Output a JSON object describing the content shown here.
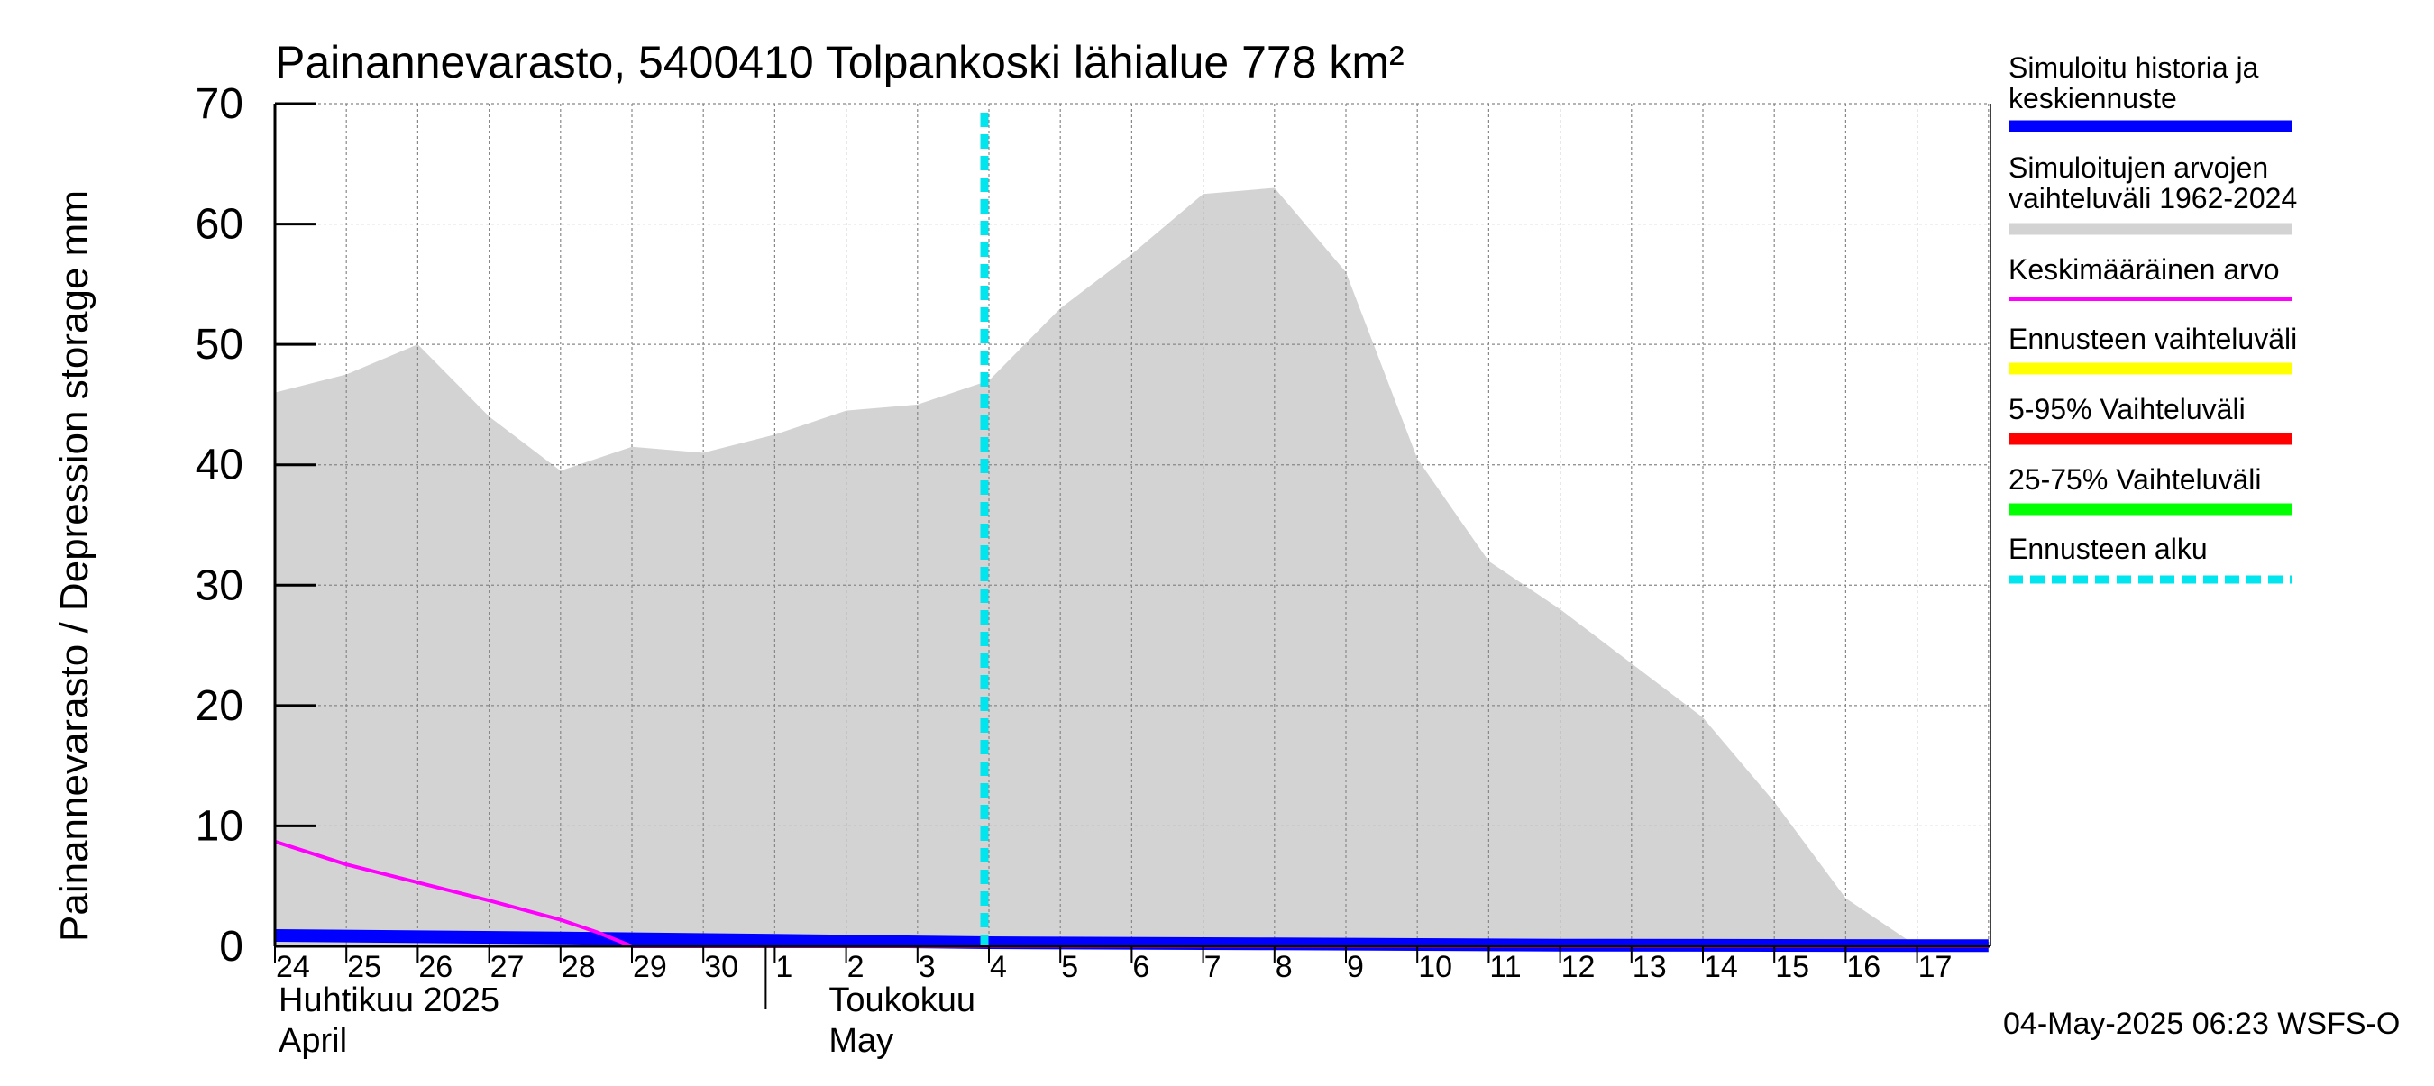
{
  "chart_data": {
    "type": "area",
    "title": "Painannevarasto, 5400410 Tolpankoski lähialue 778 km²",
    "ylabel": "Painannevarasto / Depression storage    mm",
    "ylim": [
      0,
      70
    ],
    "yticks": [
      0,
      10,
      20,
      30,
      40,
      50,
      60,
      70
    ],
    "x_day_labels": [
      "24",
      "25",
      "26",
      "27",
      "28",
      "29",
      "30",
      "1",
      "2",
      "3",
      "4",
      "5",
      "6",
      "7",
      "8",
      "9",
      "10",
      "11",
      "12",
      "13",
      "14",
      "15",
      "16",
      "17"
    ],
    "month_labels": [
      {
        "fi": "Huhtikuu  2025",
        "en": "April"
      },
      {
        "fi": "Toukokuu",
        "en": "May"
      }
    ],
    "grid": true,
    "legend_position": "right",
    "legend": [
      {
        "label": "Simuloitu historia ja keskiennuste",
        "color": "#0000ff",
        "style": "solid-thick"
      },
      {
        "label": "Simuloitujen arvojen vaihteluväli 1962-2024",
        "color": "#d3d3d3",
        "style": "solid-thick"
      },
      {
        "label": "Keskimääräinen arvo",
        "color": "#ff00ff",
        "style": "solid"
      },
      {
        "label": "Ennusteen vaihteluväli",
        "color": "#ffff00",
        "style": "solid-thick"
      },
      {
        "label": "5-95% Vaihteluväli",
        "color": "#ff0000",
        "style": "solid-thick"
      },
      {
        "label": "25-75% Vaihteluväli",
        "color": "#00ff00",
        "style": "solid-thick"
      },
      {
        "label": "Ennusteen alku",
        "color": "#00e5ee",
        "style": "dashed"
      }
    ],
    "forecast_start_day_index": 10,
    "range_band": {
      "day_index": [
        0,
        1,
        2,
        3,
        4,
        5,
        6,
        7,
        8,
        9,
        10,
        11,
        12,
        13,
        14,
        15,
        16,
        17,
        18,
        19,
        20,
        21,
        22,
        23
      ],
      "upper": [
        46,
        47.5,
        50,
        44,
        39.5,
        41.5,
        41,
        42.5,
        44.5,
        45,
        47,
        53,
        57.5,
        62.5,
        63,
        56,
        40.5,
        32,
        28,
        23.5,
        19,
        12,
        4,
        0
      ],
      "lower": [
        0,
        0,
        0,
        0,
        0,
        0,
        0,
        0,
        0,
        0,
        0,
        0,
        0,
        0,
        0,
        0,
        0,
        0,
        0,
        0,
        0,
        0,
        0,
        0
      ]
    },
    "series": [
      {
        "name": "Simuloitu historia ja keskiennuste",
        "color": "#0000ff",
        "day_index": [
          0,
          4,
          7,
          10,
          14,
          18,
          24
        ],
        "values": [
          0.9,
          0.7,
          0.5,
          0.3,
          0.2,
          0.1,
          0.05
        ]
      },
      {
        "name": "Keskimääräinen arvo",
        "color": "#ff00ff",
        "day_index": [
          0,
          1,
          2,
          3,
          4,
          4.5,
          5,
          24
        ],
        "values": [
          8.7,
          6.8,
          5.3,
          3.8,
          2.2,
          1.2,
          0,
          0
        ]
      }
    ],
    "footer": "04-May-2025 06:23 WSFS-O"
  }
}
